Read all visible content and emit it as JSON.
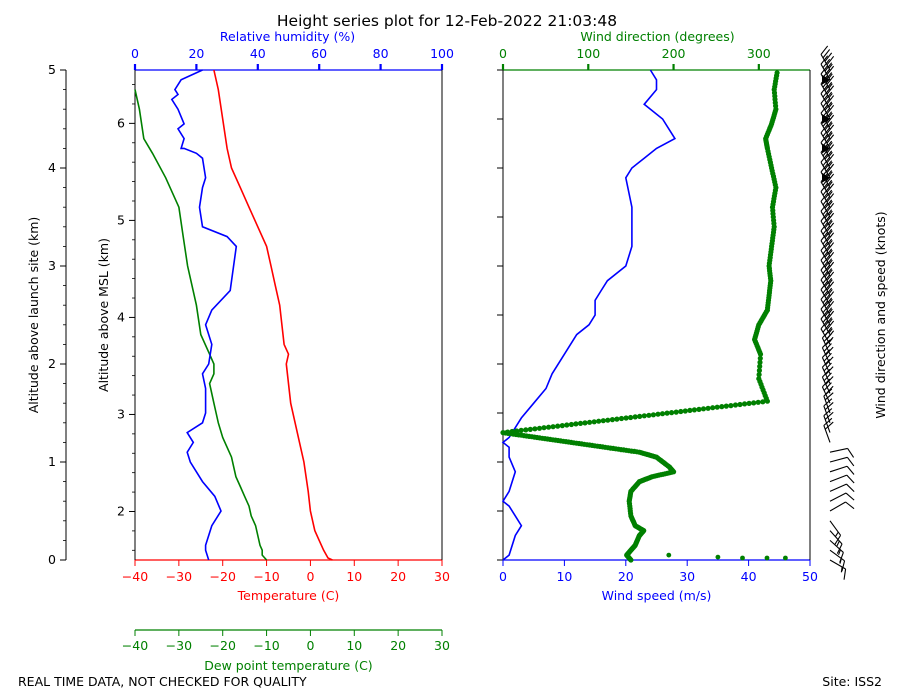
{
  "title": "Height series plot for 12-Feb-2022 21:03:48",
  "footer": {
    "left": "REAL TIME DATA, NOT CHECKED FOR QUALITY",
    "right": "Site: ISS2"
  },
  "colors": {
    "temperature": "#ff0000",
    "dewpoint": "#008000",
    "humidity": "#0000ff",
    "wind_speed": "#0000ff",
    "wind_direction": "#008000",
    "barbs": "#000000",
    "axis": "#000000"
  },
  "chart_data": [
    {
      "type": "line",
      "panel": "thermodynamic profile",
      "y_left_outer": {
        "label": "Altitude above launch site (km)",
        "lim": [
          0,
          5
        ],
        "ticks": [
          0,
          1,
          2,
          3,
          4,
          5
        ]
      },
      "y_left_inner": {
        "label": "Altitude above MSL (km)",
        "lim": [
          1.5,
          6.55
        ],
        "ticks": [
          2,
          3,
          4,
          5,
          6
        ]
      },
      "x_bottom": {
        "label": "Temperature (C)",
        "lim": [
          -40,
          30
        ],
        "ticks": [
          -40,
          -30,
          -20,
          -10,
          0,
          10,
          20,
          30
        ]
      },
      "x_bottom2": {
        "label": "Dew point temperature (C)",
        "lim": [
          -40,
          30
        ],
        "ticks": [
          -40,
          -30,
          -20,
          -10,
          0,
          10,
          20,
          30
        ]
      },
      "x_top": {
        "label": "Relative humidity (%)",
        "lim": [
          0,
          100
        ],
        "ticks": [
          0,
          20,
          40,
          60,
          80,
          100
        ]
      },
      "series": [
        {
          "name": "Temperature (C)",
          "axis": "x_bottom",
          "points": [
            [
              5,
              0
            ],
            [
              4,
              0.02
            ],
            [
              3,
              0.1
            ],
            [
              2,
              0.2
            ],
            [
              1,
              0.3
            ],
            [
              0,
              0.5
            ],
            [
              -0.5,
              0.7
            ],
            [
              -1.5,
              1
            ],
            [
              -2.5,
              1.2
            ],
            [
              -3.5,
              1.4
            ],
            [
              -4.5,
              1.6
            ],
            [
              -5,
              1.8
            ],
            [
              -5.5,
              2
            ],
            [
              -5,
              2.1
            ],
            [
              -6,
              2.2
            ],
            [
              -6.5,
              2.4
            ],
            [
              -7,
              2.6
            ],
            [
              -8,
              2.8
            ],
            [
              -9,
              3
            ],
            [
              -10,
              3.2
            ],
            [
              -12,
              3.4
            ],
            [
              -14,
              3.6
            ],
            [
              -16,
              3.8
            ],
            [
              -18,
              4
            ],
            [
              -19,
              4.2
            ],
            [
              -20,
              4.5
            ],
            [
              -21,
              4.8
            ],
            [
              -22,
              5
            ]
          ]
        },
        {
          "name": "Dew point temperature (C)",
          "axis": "x_bottom2",
          "points": [
            [
              -10,
              0
            ],
            [
              -11,
              0.05
            ],
            [
              -11,
              0.1
            ],
            [
              -11.5,
              0.15
            ],
            [
              -12,
              0.25
            ],
            [
              -12.5,
              0.35
            ],
            [
              -13.5,
              0.45
            ],
            [
              -14,
              0.55
            ],
            [
              -15,
              0.65
            ],
            [
              -16,
              0.75
            ],
            [
              -17,
              0.85
            ],
            [
              -17.5,
              0.95
            ],
            [
              -18,
              1.05
            ],
            [
              -18.5,
              1.1
            ],
            [
              -20,
              1.25
            ],
            [
              -21,
              1.4
            ],
            [
              -21.5,
              1.5
            ],
            [
              -22,
              1.6
            ],
            [
              -23,
              1.8
            ],
            [
              -22,
              1.9
            ],
            [
              -22,
              2
            ],
            [
              -23,
              2.1
            ],
            [
              -25,
              2.3
            ],
            [
              -26,
              2.6
            ],
            [
              -27,
              2.8
            ],
            [
              -28,
              3
            ],
            [
              -29,
              3.3
            ],
            [
              -30,
              3.6
            ],
            [
              -33,
              3.9
            ],
            [
              -36,
              4.15
            ],
            [
              -38,
              4.3
            ],
            [
              -39,
              4.6
            ],
            [
              -40,
              4.8
            ]
          ]
        },
        {
          "name": "Relative humidity (%)",
          "axis": "x_top",
          "points": [
            [
              24,
              0
            ],
            [
              23,
              0.1
            ],
            [
              23,
              0.15
            ],
            [
              25,
              0.35
            ],
            [
              28,
              0.5
            ],
            [
              26,
              0.65
            ],
            [
              22,
              0.8
            ],
            [
              20,
              0.9
            ],
            [
              18,
              1
            ],
            [
              17,
              1.1
            ],
            [
              19,
              1.2
            ],
            [
              17,
              1.3
            ],
            [
              22,
              1.4
            ],
            [
              23,
              1.5
            ],
            [
              23,
              1.75
            ],
            [
              22,
              1.9
            ],
            [
              24,
              2
            ],
            [
              25,
              2.2
            ],
            [
              23,
              2.4
            ],
            [
              25,
              2.55
            ],
            [
              31,
              2.75
            ],
            [
              33,
              3.2
            ],
            [
              30,
              3.3
            ],
            [
              22,
              3.4
            ],
            [
              21,
              3.6
            ],
            [
              22,
              3.8
            ],
            [
              23,
              3.9
            ],
            [
              22,
              4.1
            ],
            [
              20,
              4.15
            ],
            [
              16,
              4.2
            ],
            [
              15,
              4.2
            ],
            [
              16,
              4.3
            ],
            [
              14,
              4.4
            ],
            [
              16,
              4.45
            ],
            [
              14,
              4.6
            ],
            [
              12,
              4.7
            ],
            [
              14,
              4.75
            ],
            [
              13,
              4.8
            ],
            [
              15,
              4.9
            ],
            [
              22,
              5
            ]
          ]
        }
      ]
    },
    {
      "type": "line",
      "panel": "wind profile",
      "x_bottom": {
        "label": "Wind speed (m/s)",
        "lim": [
          0,
          50
        ],
        "ticks": [
          0,
          10,
          20,
          30,
          40,
          50
        ]
      },
      "x_top": {
        "label": "Wind direction (degrees)",
        "lim": [
          0,
          360
        ],
        "ticks": [
          0,
          100,
          200,
          300
        ]
      },
      "barbs_label": "Wind direction and speed (knots)",
      "series": [
        {
          "name": "Wind speed (m/s)",
          "axis": "x_bottom",
          "points": [
            [
              0,
              0
            ],
            [
              1,
              0.05
            ],
            [
              2,
              0.25
            ],
            [
              3,
              0.35
            ],
            [
              2,
              0.45
            ],
            [
              1,
              0.55
            ],
            [
              0,
              0.6
            ],
            [
              1,
              0.7
            ],
            [
              2,
              0.9
            ],
            [
              1,
              1.05
            ],
            [
              1,
              1.15
            ],
            [
              0,
              1.2
            ],
            [
              1,
              1.25
            ],
            [
              3,
              1.45
            ],
            [
              5,
              1.6
            ],
            [
              7,
              1.75
            ],
            [
              8,
              1.9
            ],
            [
              10,
              2.1
            ],
            [
              12,
              2.3
            ],
            [
              14,
              2.4
            ],
            [
              15,
              2.5
            ],
            [
              15,
              2.65
            ],
            [
              16,
              2.75
            ],
            [
              17,
              2.85
            ],
            [
              20,
              3
            ],
            [
              21,
              3.2
            ],
            [
              21,
              3.6
            ],
            [
              20,
              3.9
            ],
            [
              21,
              4
            ],
            [
              23,
              4.1
            ],
            [
              25,
              4.2
            ],
            [
              28,
              4.3
            ],
            [
              26,
              4.5
            ],
            [
              23,
              4.65
            ],
            [
              25,
              4.8
            ],
            [
              25,
              4.9
            ],
            [
              24,
              5
            ]
          ]
        },
        {
          "name": "Wind direction (degrees)",
          "axis": "x_top",
          "points": [
            [
              150,
              0
            ],
            [
              145,
              0.05
            ],
            [
              150,
              0.1
            ],
            [
              155,
              0.15
            ],
            [
              160,
              0.25
            ],
            [
              165,
              0.3
            ],
            [
              155,
              0.35
            ],
            [
              150,
              0.45
            ],
            [
              148,
              0.6
            ],
            [
              150,
              0.7
            ],
            [
              160,
              0.8
            ],
            [
              175,
              0.85
            ],
            [
              200,
              0.9
            ],
            [
              195,
              0.95
            ],
            [
              180,
              1.05
            ],
            [
              160,
              1.1
            ],
            [
              120,
              1.15
            ],
            [
              80,
              1.2
            ],
            [
              40,
              1.25
            ],
            [
              0,
              1.3
            ],
            [
              310,
              1.62
            ],
            [
              300,
              1.85
            ],
            [
              302,
              2.1
            ],
            [
              295,
              2.25
            ],
            [
              300,
              2.4
            ],
            [
              310,
              2.55
            ],
            [
              312,
              2.7
            ],
            [
              314,
              2.85
            ],
            [
              312,
              3
            ],
            [
              315,
              3.2
            ],
            [
              318,
              3.4
            ],
            [
              316,
              3.6
            ],
            [
              320,
              3.8
            ],
            [
              315,
              4.0
            ],
            [
              310,
              4.2
            ],
            [
              308,
              4.3
            ],
            [
              315,
              4.45
            ],
            [
              320,
              4.6
            ],
            [
              318,
              4.8
            ],
            [
              322,
              5
            ]
          ]
        }
      ]
    }
  ]
}
